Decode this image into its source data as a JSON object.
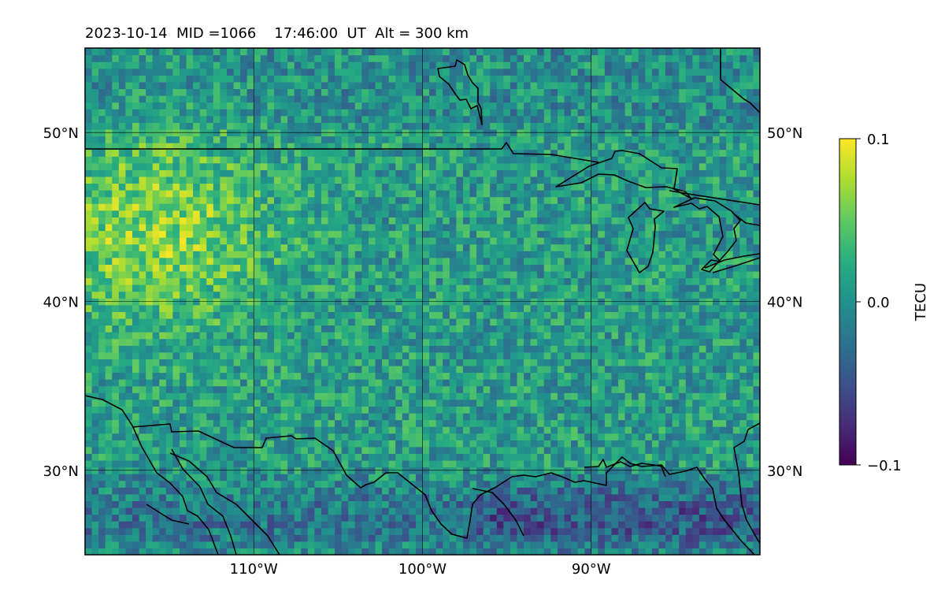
{
  "chart_data": {
    "type": "heatmap",
    "title": "2023-10-14  MID =1066    17:46:00  UT  Alt = 300 km",
    "xlabel": "",
    "ylabel": "",
    "projection": "lat-lon map",
    "lon_range": [
      -120,
      -80
    ],
    "lat_range": [
      25,
      55
    ],
    "x_ticks": [
      {
        "value": -110,
        "label": "110°W"
      },
      {
        "value": -100,
        "label": "100°W"
      },
      {
        "value": -90,
        "label": "90°W"
      }
    ],
    "y_ticks": [
      {
        "value": 30,
        "label": "30°N"
      },
      {
        "value": 40,
        "label": "40°N"
      },
      {
        "value": 50,
        "label": "50°N"
      }
    ],
    "y_tick_sides": "left-and-right",
    "grid": true,
    "colormap": "viridis",
    "colorbar": {
      "label": "TECU",
      "vmin": -0.1,
      "vmax": 0.1,
      "ticks": [
        {
          "value": 0.1,
          "label": "0.1"
        },
        {
          "value": 0.0,
          "label": "0.0"
        },
        {
          "value": -0.1,
          "label": "−0.1"
        }
      ],
      "placement": "right"
    },
    "overlays": [
      "coastlines",
      "country borders",
      "great lakes"
    ],
    "pattern_summary": "small-scale TEC fluctuations; positive (yellow) patches concentrated in the north-west, negative (purple) patches along the Gulf coast near 27-30N"
  }
}
